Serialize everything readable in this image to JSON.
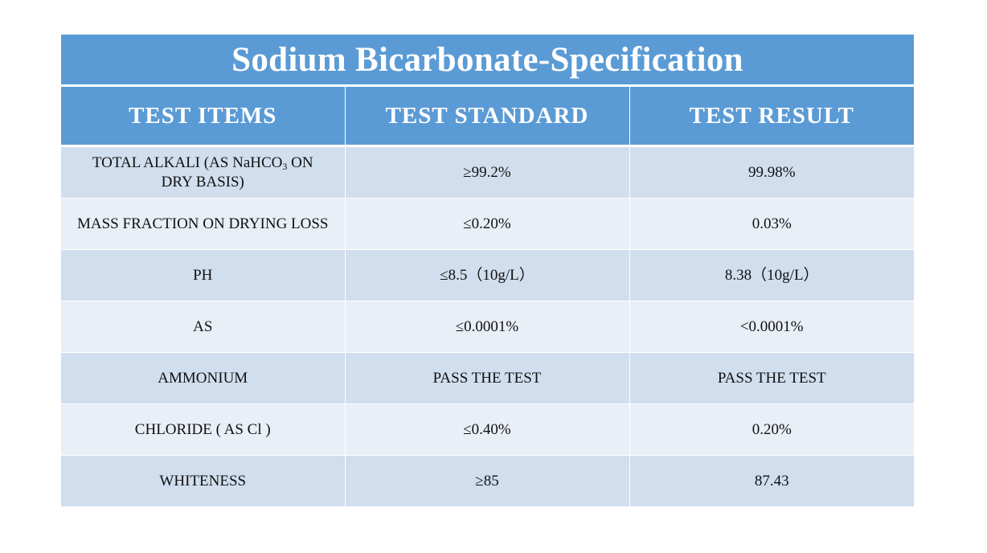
{
  "title": "Sodium Bicarbonate-Specification",
  "headers": [
    "TEST ITEMS",
    "TEST STANDARD",
    "TEST RESULT"
  ],
  "rows": [
    {
      "item": "TOTAL ALKALI (AS NaHCO3 ON DRY BASIS)",
      "item_parts": {
        "pre": "TOTAL ALKALI (AS NaHCO",
        "sub": "3",
        "post": " ON",
        "line2": "DRY BASIS)"
      },
      "standard": "≥99.2%",
      "result": "99.98%"
    },
    {
      "item": "MASS FRACTION ON DRYING LOSS",
      "standard": "≤0.20%",
      "result": "0.03%"
    },
    {
      "item": "PH",
      "standard": "≤8.5（10g/L）",
      "result": "8.38（10g/L）"
    },
    {
      "item": "AS",
      "standard": "≤0.0001%",
      "result": "<0.0001%"
    },
    {
      "item": "AMMONIUM",
      "standard": "PASS THE TEST",
      "result": "PASS THE TEST"
    },
    {
      "item": "CHLORIDE ( AS Cl )",
      "standard": "≤0.40%",
      "result": "0.20%"
    },
    {
      "item": "WHITENESS",
      "standard": "≥85",
      "result": "87.43"
    }
  ],
  "colors": {
    "header_bg": "#5b9bd5",
    "header_text": "#ffffff",
    "row_odd": "#d0deee",
    "row_even": "#e9eff7"
  }
}
